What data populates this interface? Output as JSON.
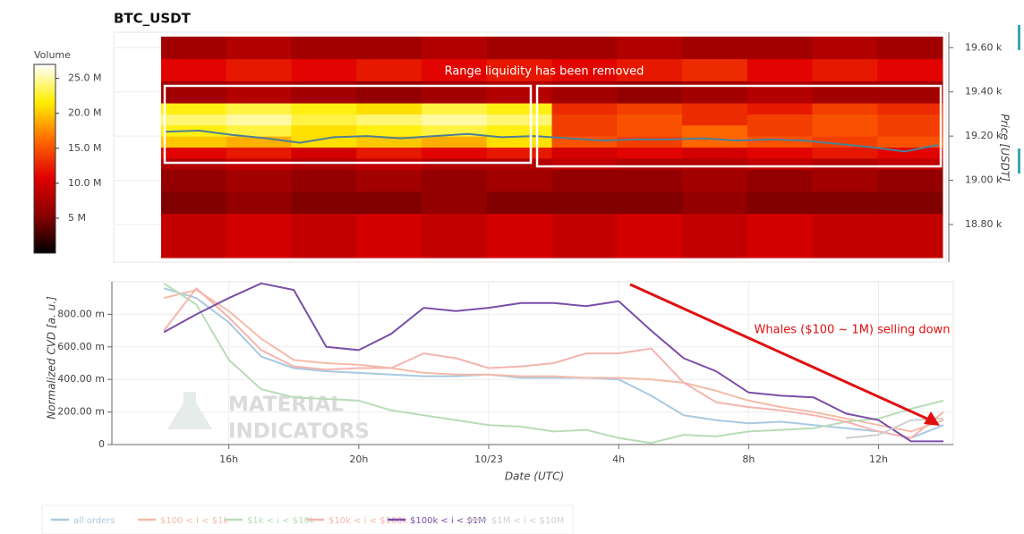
{
  "chart_data": [
    {
      "type": "heatmap",
      "title": "BTC_USDT",
      "annotation": "Range liquidity has been removed",
      "ylabel": "Price [USDT]",
      "ylim": [
        18630,
        19670
      ],
      "yticks": [
        {
          "value": 18800,
          "label": "18.80 k"
        },
        {
          "value": 19000,
          "label": "19.00 k"
        },
        {
          "value": 19200,
          "label": "19.20 k"
        },
        {
          "value": 19400,
          "label": "19.40 k"
        },
        {
          "value": 19600,
          "label": "19.60 k"
        }
      ],
      "price_bins": [
        18650,
        18850,
        18950,
        19050,
        19100,
        19150,
        19200,
        19250,
        19300,
        19350,
        19450,
        19550,
        19650
      ],
      "values": [
        [
          9,
          10,
          9,
          10,
          9,
          10,
          9,
          10,
          9,
          10,
          9,
          9
        ],
        [
          5,
          6,
          5,
          5,
          6,
          5,
          5,
          5,
          6,
          5,
          5,
          5
        ],
        [
          6,
          7,
          6,
          7,
          6,
          7,
          6,
          6,
          7,
          6,
          7,
          6
        ],
        [
          8,
          9,
          8,
          9,
          8,
          8,
          9,
          8,
          8,
          9,
          8,
          9
        ],
        [
          11,
          12,
          10,
          12,
          11,
          12,
          10,
          11,
          10,
          11,
          12,
          11
        ],
        [
          20,
          19,
          21,
          20,
          19,
          21,
          15,
          14,
          16,
          15,
          14,
          15
        ],
        [
          22,
          23,
          21,
          22,
          23,
          22,
          14,
          15,
          16,
          14,
          15,
          14
        ],
        [
          24,
          25,
          23,
          24,
          25,
          24,
          14,
          15,
          13,
          14,
          15,
          14
        ],
        [
          22,
          23,
          22,
          21,
          23,
          22,
          13,
          14,
          13,
          12,
          14,
          13
        ],
        [
          7,
          8,
          7,
          6,
          7,
          8,
          7,
          6,
          7,
          8,
          7,
          7
        ],
        [
          11,
          12,
          11,
          12,
          11,
          12,
          11,
          12,
          13,
          11,
          12,
          11
        ],
        [
          7,
          8,
          7,
          7,
          8,
          7,
          7,
          8,
          7,
          7,
          8,
          7
        ]
      ],
      "price_line": [
        19220,
        19225,
        19205,
        19190,
        19170,
        19195,
        19200,
        19190,
        19200,
        19210,
        19195,
        19200,
        19190,
        19180,
        19185,
        19185,
        19190,
        19180,
        19185,
        19180,
        19165,
        19150,
        19130,
        19160
      ],
      "price_line_color": "#4f7f94",
      "colorbar_label": "Volume",
      "clim": [
        0,
        27
      ],
      "colorbar_ticks": [
        {
          "value": 5,
          "label": "5 M"
        },
        {
          "value": 10,
          "label": "10.0 M"
        },
        {
          "value": 15,
          "label": "15.0 M"
        },
        {
          "value": 20,
          "label": "20.0 M"
        },
        {
          "value": 25,
          "label": "25.0 M"
        }
      ],
      "colormap": [
        "#000000",
        "#8a0000",
        "#e00000",
        "#ff6a00",
        "#ffee00",
        "#ffffff"
      ]
    },
    {
      "type": "line",
      "xlabel": "Date (UTC)",
      "ylabel": "Normalized CVD [a. u.]",
      "annotation": "Whales ($100 ~ 1M) selling down",
      "watermark": [
        "MATERIAL",
        "INDICATORS"
      ],
      "x": [
        14,
        15,
        16,
        17,
        18,
        19,
        20,
        21,
        22,
        23,
        24,
        25,
        26,
        27,
        28,
        29,
        30,
        31,
        32,
        33,
        34,
        35,
        36,
        37,
        38
      ],
      "xlim": [
        12.4,
        38.3
      ],
      "xticks": [
        {
          "value": 16,
          "label": "16h"
        },
        {
          "value": 20,
          "label": "20h"
        },
        {
          "value": 24,
          "label": "10/23"
        },
        {
          "value": 28,
          "label": "4h"
        },
        {
          "value": 32,
          "label": "8h"
        },
        {
          "value": 36,
          "label": "12h"
        }
      ],
      "ylim": [
        0,
        1000
      ],
      "yticks": [
        0,
        {
          "value": 200,
          "label": "200.00 m"
        },
        {
          "value": 400,
          "label": "400.00 m"
        },
        {
          "value": 600,
          "label": "600.00 m"
        },
        {
          "value": 800,
          "label": "800.00 m"
        }
      ],
      "grid": true,
      "series": [
        {
          "name": "all orders",
          "color": "#a9c9e2",
          "values": [
            960,
            900,
            750,
            540,
            470,
            450,
            440,
            430,
            420,
            420,
            430,
            410,
            410,
            410,
            400,
            300,
            180,
            150,
            130,
            140,
            120,
            100,
            80,
            40,
            120
          ]
        },
        {
          "name": "$100 < i < $1k",
          "color": "#f5bba8",
          "values": [
            900,
            950,
            820,
            650,
            520,
            500,
            490,
            470,
            440,
            430,
            430,
            420,
            420,
            410,
            410,
            400,
            380,
            330,
            270,
            230,
            200,
            160,
            120,
            80,
            150
          ]
        },
        {
          "name": "$1k < i < $10k",
          "color": "#b8dcb8",
          "values": [
            990,
            860,
            520,
            340,
            290,
            280,
            270,
            210,
            180,
            150,
            120,
            110,
            80,
            90,
            40,
            10,
            60,
            50,
            80,
            90,
            100,
            140,
            160,
            220,
            270
          ]
        },
        {
          "name": "$10k < i < $100k",
          "color": "#f4b4ae",
          "values": [
            700,
            960,
            780,
            580,
            480,
            460,
            470,
            470,
            560,
            530,
            470,
            480,
            500,
            560,
            560,
            590,
            380,
            260,
            230,
            210,
            180,
            140,
            80,
            40,
            200
          ]
        },
        {
          "name": "$100k < i < $1M",
          "color": "#7a4fa8",
          "values": [
            690,
            800,
            900,
            990,
            950,
            600,
            580,
            680,
            840,
            820,
            840,
            870,
            870,
            850,
            880,
            700,
            530,
            450,
            320,
            300,
            290,
            190,
            150,
            20,
            20
          ]
        },
        {
          "name": "$1M < i < $10M",
          "color": "#cfcfcf",
          "values": [
            null,
            null,
            null,
            null,
            null,
            null,
            null,
            null,
            null,
            null,
            null,
            null,
            null,
            null,
            null,
            null,
            null,
            null,
            null,
            null,
            null,
            40,
            60,
            150,
            160
          ]
        }
      ]
    }
  ]
}
